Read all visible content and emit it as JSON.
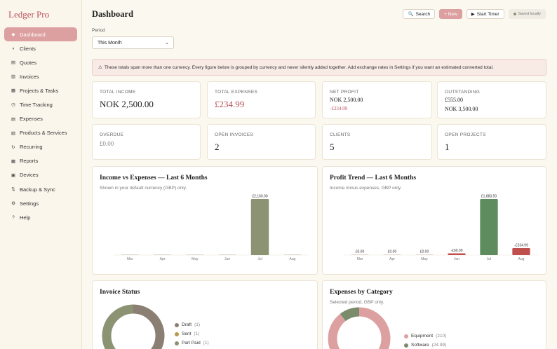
{
  "app": {
    "brand": "Ledger Pro"
  },
  "sidebar": {
    "items": [
      {
        "label": "Dashboard",
        "icon": "◆",
        "active": true
      },
      {
        "label": "Clients",
        "icon": "◖"
      },
      {
        "label": "Quotes",
        "icon": "▤"
      },
      {
        "label": "Invoices",
        "icon": "▥"
      },
      {
        "label": "Projects & Tasks",
        "icon": "▦"
      },
      {
        "label": "Time Tracking",
        "icon": "◷"
      },
      {
        "label": "Expenses",
        "icon": "▤"
      },
      {
        "label": "Products & Services",
        "icon": "▧"
      },
      {
        "label": "Recurring",
        "icon": "↻"
      },
      {
        "label": "Reports",
        "icon": "▩"
      },
      {
        "label": "Devices",
        "icon": "▣"
      },
      {
        "label": "Backup & Sync",
        "icon": "⇅"
      },
      {
        "label": "Settings",
        "icon": "⚙"
      },
      {
        "label": "Help",
        "icon": "?"
      }
    ]
  },
  "header": {
    "title": "Dashboard",
    "search_label": "Search",
    "new_label": "+ New",
    "timer_label": "Start Timer",
    "saved_label": "Saved locally"
  },
  "period": {
    "label": "Period",
    "value": "This Month"
  },
  "alert": {
    "text": "These totals span more than one currency. Every figure below is grouped by currency and never silently added together. Add exchange rates in Settings if you want an estimated converted total."
  },
  "stats": {
    "income": {
      "label": "TOTAL INCOME",
      "value": "NOK 2,500.00"
    },
    "expenses": {
      "label": "TOTAL EXPENSES",
      "value": "£234.99"
    },
    "net": {
      "label": "NET PROFIT",
      "line1": "NOK 2,500.00",
      "line2": "-£234.99"
    },
    "outstanding": {
      "label": "OUTSTANDING",
      "line1": "£555.00",
      "line2": "NOK 3,500.00"
    },
    "overdue": {
      "label": "OVERDUE",
      "value": "£0.00"
    },
    "open_invoices": {
      "label": "OPEN INVOICES",
      "value": "2"
    },
    "clients": {
      "label": "CLIENTS",
      "value": "5"
    },
    "open_projects": {
      "label": "OPEN PROJECTS",
      "value": "1"
    }
  },
  "chart_data": [
    {
      "type": "bar",
      "title": "Income vs Expenses — Last 6 Months",
      "subtitle": "Shown in your default currency (GBP) only.",
      "categories": [
        "Mar",
        "Apr",
        "May",
        "Jun",
        "Jul",
        "Aug"
      ],
      "values": [
        0,
        0,
        0,
        0,
        2160,
        0
      ],
      "data_labels": [
        "",
        "",
        "",
        "",
        "£2,160.00",
        ""
      ],
      "color": "#8b9373"
    },
    {
      "type": "bar",
      "title": "Profit Trend — Last 6 Months",
      "subtitle": "Income minus expenses, GBP only.",
      "categories": [
        "Mar",
        "Apr",
        "May",
        "Jun",
        "Jul",
        "Aug"
      ],
      "values": [
        0,
        0,
        0,
        -60,
        1883.5,
        -234.99
      ],
      "data_labels": [
        "£0.00",
        "£0.00",
        "£0.00",
        "-£60.00",
        "£1,883.50",
        "-£234.99"
      ],
      "pos_color": "#5e8c5e",
      "neg_color": "#c0504d"
    },
    {
      "type": "pie",
      "title": "Invoice Status",
      "subtitle": "",
      "labels": [
        "Draft",
        "Sent",
        "Part Paid"
      ],
      "counts": [
        "(1)",
        "(1)",
        "(1)"
      ],
      "colors": [
        "#8a7f72",
        "#b89a4e",
        "#8b9373"
      ]
    },
    {
      "type": "pie",
      "title": "Expenses by Category",
      "subtitle": "Selected period, GBP only.",
      "labels": [
        "Equipment",
        "Software"
      ],
      "counts": [
        "(210)",
        "(24.99)"
      ],
      "values": [
        210,
        24.99
      ],
      "colors": [
        "#dda0a0",
        "#7a8c6c"
      ]
    }
  ]
}
